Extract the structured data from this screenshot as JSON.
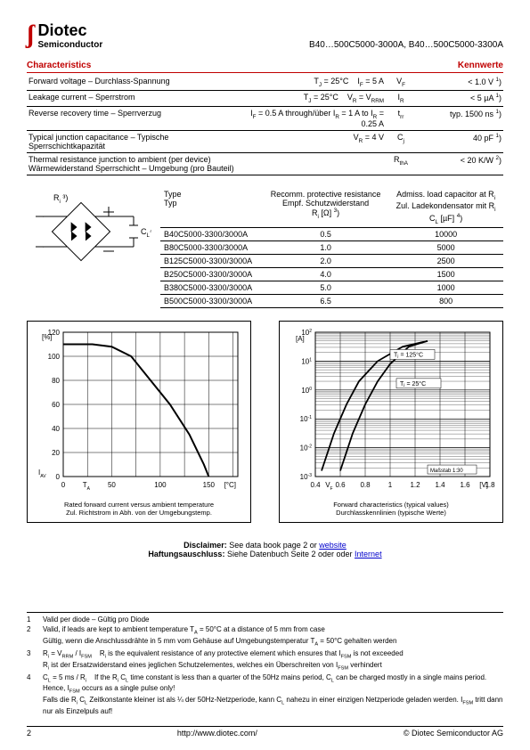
{
  "header": {
    "brand": "Diotec",
    "sub": "Semiconductor",
    "partno": "B40…500C5000-3000A, B40…500C5000-3300A"
  },
  "char": {
    "left_title": "Characteristics",
    "right_title": "Kennwerte",
    "rows": [
      {
        "label": "Forward voltage – Durchlass-Spannung",
        "cond": "T<sub>J</sub> = 25°C &nbsp;&nbsp; I<sub>F</sub> = 5 A",
        "sym": "V<sub>F</sub>",
        "val": "< 1.0 V <sup>1</sup>)"
      },
      {
        "label": "Leakage current – Sperrstrom",
        "cond": "T<sub>J</sub> = 25°C &nbsp;&nbsp; V<sub>R</sub> = V<sub>RRM</sub>",
        "sym": "I<sub>R</sub>",
        "val": "< 5 µA <sup>1</sup>)"
      },
      {
        "label": "Reverse recovery time – Sperrverzug",
        "cond": "I<sub>F</sub> = 0.5 A through/über I<sub>R</sub> = 1 A to I<sub>R</sub> = 0.25 A",
        "sym": "t<sub>rr</sub>",
        "val": "typ. 1500 ns <sup>1</sup>)"
      },
      {
        "label": "Typical junction capacitance – Typische Sperrschichtkapazität",
        "cond": "V<sub>R</sub> = 4 V",
        "sym": "C<sub>j</sub>",
        "val": "40 pF <sup>1</sup>)"
      },
      {
        "label": "Thermal resistance junction to ambient (per device)<br>Wärmewiderstand Sperrschicht – Umgebung (pro Bauteil)",
        "cond": "",
        "sym": "R<sub>thA</sub>",
        "val": "< 20 K/W <sup>2</sup>)"
      }
    ]
  },
  "types": {
    "h_type": "Type\nTyp",
    "h_r": "Recomm. protective resistance\nEmpf. Schutzwiderstand\nRᵢ [Ω] ³)",
    "h_c": "Admiss. load capacitor at Rᵢ\nZul. Ladekondensator mit Rᵢ\nCₗ [µF] ⁴)",
    "rows": [
      {
        "t": "B40C5000-3300/3000A",
        "r": "0.5",
        "c": "10000"
      },
      {
        "t": "B80C5000-3300/3000A",
        "r": "1.0",
        "c": "5000"
      },
      {
        "t": "B125C5000-3300/3000A",
        "r": "2.0",
        "c": "2500"
      },
      {
        "t": "B250C5000-3300/3000A",
        "r": "4.0",
        "c": "1500"
      },
      {
        "t": "B380C5000-3300/3000A",
        "r": "5.0",
        "c": "1000"
      },
      {
        "t": "B500C5000-3300/3000A",
        "r": "6.5",
        "c": "800"
      }
    ]
  },
  "chart1": {
    "caption1": "Rated forward current versus ambient temperature",
    "caption2": "Zul. Richtstrom in Abh. von der Umgebungstemp.",
    "ylabel": "[%]",
    "xlabel": "[°C]",
    "y_ticks": [
      0,
      20,
      40,
      60,
      80,
      100,
      120
    ],
    "x_ticks": [
      0,
      50,
      100,
      150
    ],
    "ylim": [
      0,
      120
    ],
    "xlim": [
      0,
      180
    ],
    "bg": "#ffffff",
    "grid": "#000000",
    "line": "#000000",
    "curve": [
      [
        0,
        110
      ],
      [
        30,
        110
      ],
      [
        50,
        108
      ],
      [
        70,
        100
      ],
      [
        90,
        80
      ],
      [
        110,
        60
      ],
      [
        130,
        35
      ],
      [
        145,
        10
      ],
      [
        150,
        0
      ]
    ]
  },
  "chart2": {
    "caption1": "Forward characteristics (typical values)",
    "caption2": "Durchlasskennlinien (typische Werte)",
    "ylabel": "[A]",
    "xlabel": "[V]",
    "x_ticks": [
      0.4,
      0.6,
      0.8,
      1.0,
      1.2,
      1.4,
      1.6,
      1.8
    ],
    "y_log": true,
    "ylim_exp": [
      -3,
      2
    ],
    "xlim": [
      0.4,
      1.8
    ],
    "bg": "#ffffff",
    "grid": "#000000",
    "line": "#000000",
    "legend25": "Tⱼ = 25°C",
    "legend125": "Tⱼ = 125°C",
    "scale": "Maßstab 1:30",
    "curve25": [
      [
        0.6,
        -2.8
      ],
      [
        0.7,
        -1.5
      ],
      [
        0.8,
        -0.5
      ],
      [
        0.9,
        0.3
      ],
      [
        1.0,
        0.9
      ],
      [
        1.15,
        1.5
      ],
      [
        1.3,
        1.7
      ]
    ],
    "curve125": [
      [
        0.45,
        -2.8
      ],
      [
        0.55,
        -1.5
      ],
      [
        0.65,
        -0.5
      ],
      [
        0.75,
        0.3
      ],
      [
        0.9,
        1.0
      ],
      [
        1.1,
        1.5
      ],
      [
        1.3,
        1.7
      ]
    ]
  },
  "disclaimer": {
    "en_pre": "Disclaimer:",
    "en": " See data book page 2 or ",
    "en_link": "website",
    "de_pre": "Haftungsauschluss:",
    "de": " Siehe Datenbuch Seite 2 oder oder ",
    "de_link": "Internet"
  },
  "footnotes": [
    {
      "n": "1",
      "t": "Valid per diode – Gültig pro Diode"
    },
    {
      "n": "2",
      "t": "Valid, if leads are kept to ambient temperature T<sub>A</sub> = 50°C at a distance of 5 mm from case<br>Gültig, wenn die Anschlussdrähte in 5 mm vom Gehäuse auf Umgebungstemperatur T<sub>A</sub> = 50°C gehalten werden"
    },
    {
      "n": "3",
      "t": "R<sub>i</sub> = V<sub>RRM</sub> / I<sub>FSM</sub> &nbsp;&nbsp; R<sub>i</sub> is the equivalent resistance of any protective element which ensures that I<sub>FSM</sub> is not exceeded<br>R<sub>i</sub> ist der Ersatzwiderstand eines jeglichen Schutzelementes, welches ein Überschreiten von I<sub>FSM</sub> verhindert"
    },
    {
      "n": "4",
      "t": "C<sub>L</sub> = 5 ms / R<sub>i</sub> &nbsp;&nbsp; If the R<sub>i</sub> C<sub>L</sub> time constant is less than a quarter of the 50Hz mains period, C<sub>L</sub> can be charged mostly in a single mains period. Hence, I<sub>FSM</sub> occurs as a single pulse only!<br>Falls die R<sub>i</sub> C<sub>L</sub> Zeitkonstante kleiner ist als ¼ der 50Hz-Netzperiode, kann C<sub>L</sub> nahezu in einer einzigen Netzperiode geladen werden. I<sub>FSM</sub> tritt dann nur als Einzelpuls auf!"
    }
  ],
  "footer": {
    "page": "2",
    "url": "http://www.diotec.com/",
    "copy": "© Diotec Semiconductor AG"
  }
}
